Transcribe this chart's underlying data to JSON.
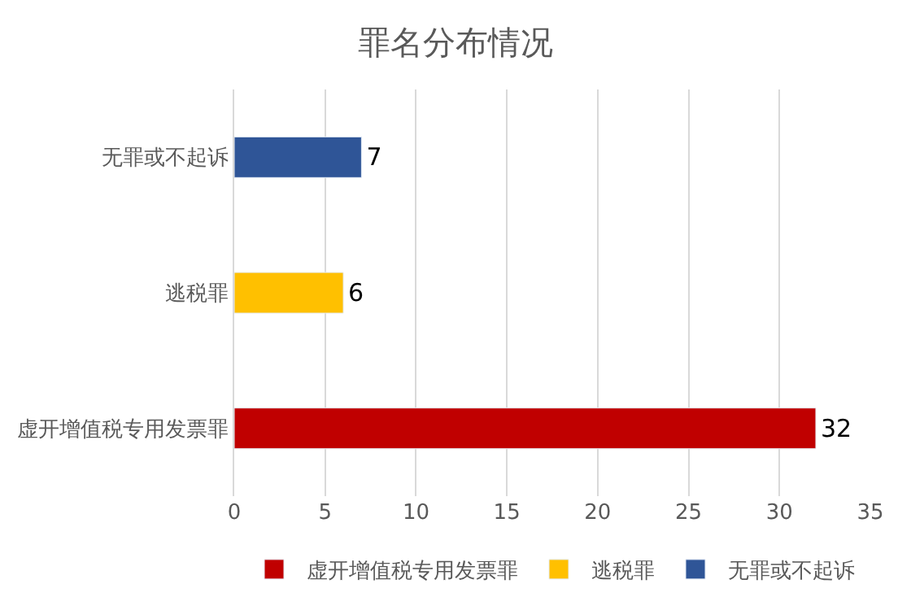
{
  "chart_data": {
    "type": "bar",
    "orientation": "horizontal",
    "title": "罪名分布情况",
    "categories": [
      "无罪或不起诉",
      "逃税罪",
      "虚开增值税专用发票罪"
    ],
    "series": [
      {
        "name": "虚开增值税专用发票罪",
        "color": "#c00000",
        "values": [
          null,
          null,
          32
        ]
      },
      {
        "name": "逃税罪",
        "color": "#ffc000",
        "values": [
          null,
          6,
          null
        ]
      },
      {
        "name": "无罪或不起诉",
        "color": "#2f5597",
        "values": [
          7,
          null,
          null
        ]
      }
    ],
    "xlim": [
      0,
      35
    ],
    "xticks": [
      0,
      5,
      10,
      15,
      20,
      25,
      30,
      35
    ],
    "grid": "x",
    "legend": "bottom",
    "data_labels": true
  }
}
